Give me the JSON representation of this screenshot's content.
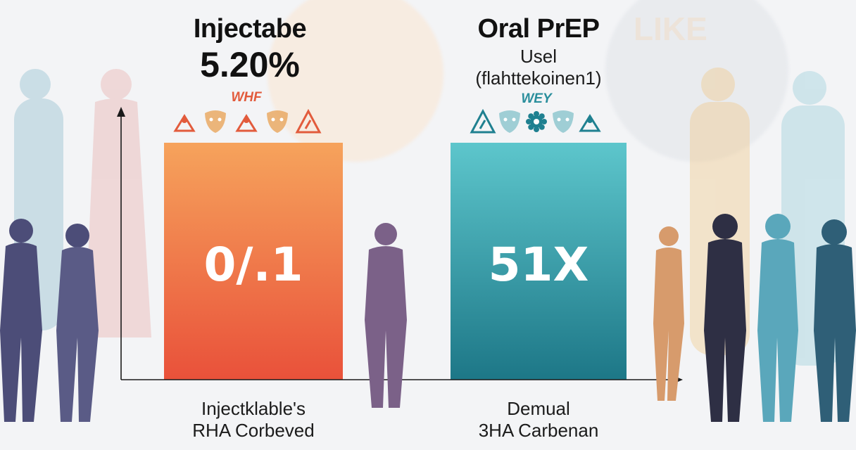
{
  "chart_data": {
    "type": "bar",
    "categories": [
      [
        "Injectklable's",
        "RHA Corbeved"
      ],
      [
        "Demual",
        "3HA Carbenan"
      ]
    ],
    "bars": [
      {
        "title": "Injectabe",
        "headline": "5.20%",
        "tag": "WHF",
        "value_label": "0/.1",
        "color_top": "#f6a35c",
        "color_bottom": "#e9513a",
        "icons": [
          "person-triangle-icon",
          "mask-icon",
          "person-triangle-icon",
          "mask-icon",
          "warning-icon"
        ]
      },
      {
        "title": "Oral PrEP",
        "subtitle": "Usel",
        "subtitle2": "(flahttekoinen1)",
        "tag": "WEY",
        "value_label": "51X",
        "color_top": "#5dc6cc",
        "color_bottom": "#1d7787",
        "icons": [
          "warning-icon",
          "mask-icon",
          "gear-icon",
          "mask-icon",
          "person-triangle-icon"
        ]
      }
    ],
    "grid": false,
    "legend": "none"
  },
  "colors": {
    "axis": "#1a1a1a",
    "accent_orange": "#e25b3c",
    "accent_teal": "#2a8e9c"
  },
  "watermark": "LIKE"
}
